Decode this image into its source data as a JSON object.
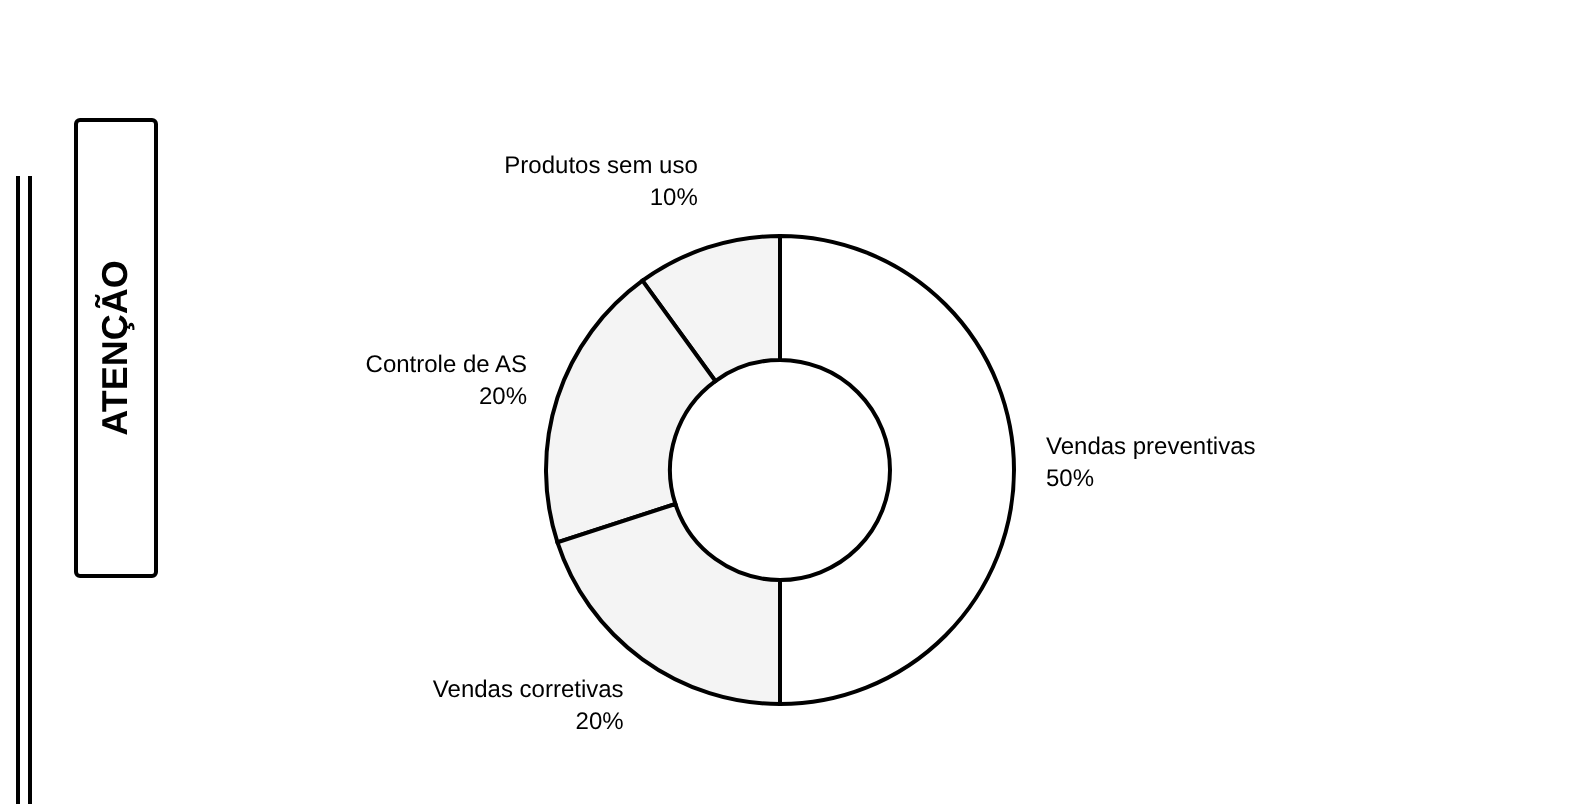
{
  "chart_data": {
    "type": "donut",
    "categories": [
      "Vendas preventivas",
      "Produtos sem uso",
      "Controle de AS",
      "Vendas corretivas"
    ],
    "values": [
      50,
      10,
      20,
      20
    ],
    "colors": [
      "#ffffff",
      "#f4f4f4",
      "#f4f4f4",
      "#f4f4f4"
    ],
    "value_labels": [
      "50%",
      "10%",
      "20%",
      "20%"
    ],
    "annotations": [
      "ATENÇÃO"
    ],
    "legend": false
  }
}
